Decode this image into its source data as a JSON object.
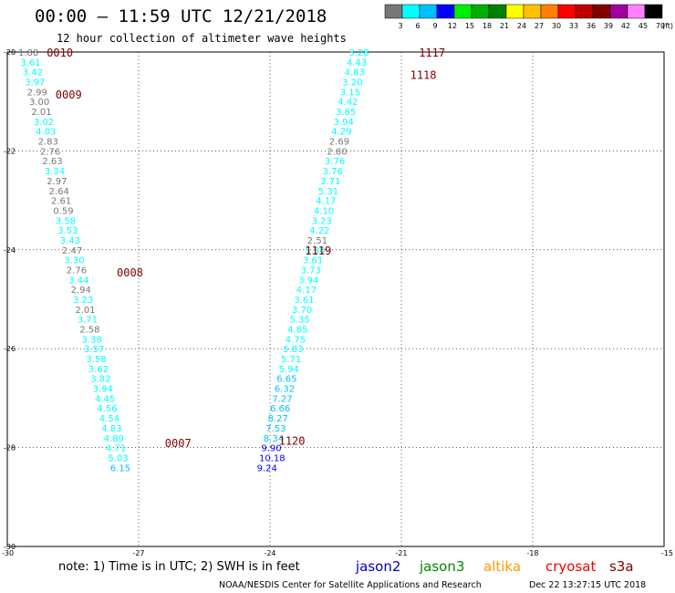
{
  "header": {
    "title": "00:00 – 11:59 UTC 12/21/2018",
    "subtitle": "12 hour collection of altimeter wave heights"
  },
  "color_scale": {
    "labels": [
      "3",
      "6",
      "9",
      "12",
      "15",
      "18",
      "21",
      "24",
      "27",
      "30",
      "33",
      "36",
      "39",
      "42",
      "45",
      "70"
    ],
    "unit": "(ft)",
    "colors": [
      "#777777",
      "#00ffff",
      "#00bfff",
      "#0000ff",
      "#00ee00",
      "#00b000",
      "#008000",
      "#ffff00",
      "#ffc000",
      "#ff8000",
      "#ff0000",
      "#c00000",
      "#800000",
      "#a000a0",
      "#ff80ff",
      "#000000"
    ]
  },
  "map": {
    "lat_labels": [
      "-20",
      "-22",
      "-24",
      "-26",
      "-28",
      "-30"
    ],
    "lon_labels": [
      "-30",
      "-27",
      "-24",
      "-21",
      "-18",
      "-15"
    ]
  },
  "passes": [
    {
      "id": "0010",
      "lon": -29.1,
      "lat": -20.0
    },
    {
      "id": "0009",
      "lon": -28.9,
      "lat": -20.85
    },
    {
      "id": "0008",
      "lon": -27.5,
      "lat": -24.45
    },
    {
      "id": "0007",
      "lon": -26.4,
      "lat": -27.9
    },
    {
      "id": "1117",
      "lon": -20.6,
      "lat": -20.0
    },
    {
      "id": "1118",
      "lon": -20.8,
      "lat": -20.45
    },
    {
      "id": "1119",
      "lon": -23.2,
      "lat": -24.0
    },
    {
      "id": "1120",
      "lon": -23.8,
      "lat": -27.85
    }
  ],
  "tracks": [
    {
      "name": "track-1",
      "points": [
        {
          "lon": -29.75,
          "lat": -20.0,
          "v": "1.88",
          "c": "#777777"
        },
        {
          "lon": -29.7,
          "lat": -20.2,
          "v": "3.61",
          "c": "#00ffff"
        },
        {
          "lon": -29.65,
          "lat": -20.4,
          "v": "3.42",
          "c": "#00ffff"
        },
        {
          "lon": -29.6,
          "lat": -20.6,
          "v": "3.97",
          "c": "#00ffff"
        },
        {
          "lon": -29.55,
          "lat": -20.8,
          "v": "2.99",
          "c": "#777777"
        },
        {
          "lon": -29.5,
          "lat": -21.0,
          "v": "3.00",
          "c": "#777777"
        },
        {
          "lon": -29.45,
          "lat": -21.2,
          "v": "2.01",
          "c": "#777777"
        },
        {
          "lon": -29.4,
          "lat": -21.4,
          "v": "3.02",
          "c": "#00ffff"
        },
        {
          "lon": -29.35,
          "lat": -21.6,
          "v": "4.03",
          "c": "#00ffff"
        },
        {
          "lon": -29.3,
          "lat": -21.8,
          "v": "2.83",
          "c": "#777777"
        },
        {
          "lon": -29.25,
          "lat": -22.0,
          "v": "2.76",
          "c": "#777777"
        },
        {
          "lon": -29.2,
          "lat": -22.2,
          "v": "2.63",
          "c": "#777777"
        },
        {
          "lon": -29.15,
          "lat": -22.4,
          "v": "3.34",
          "c": "#00ffff"
        },
        {
          "lon": -29.1,
          "lat": -22.6,
          "v": "2.97",
          "c": "#777777"
        },
        {
          "lon": -29.05,
          "lat": -22.8,
          "v": "2.64",
          "c": "#777777"
        },
        {
          "lon": -29.0,
          "lat": -23.0,
          "v": "2.61",
          "c": "#777777"
        },
        {
          "lon": -28.95,
          "lat": -23.2,
          "v": "0.59",
          "c": "#777777"
        },
        {
          "lon": -28.9,
          "lat": -23.4,
          "v": "3.58",
          "c": "#00ffff"
        },
        {
          "lon": -28.85,
          "lat": -23.6,
          "v": "3.53",
          "c": "#00ffff"
        },
        {
          "lon": -28.8,
          "lat": -23.8,
          "v": "3.43",
          "c": "#00ffff"
        },
        {
          "lon": -28.75,
          "lat": -24.0,
          "v": "2.47",
          "c": "#777777"
        },
        {
          "lon": -28.7,
          "lat": -24.2,
          "v": "3.30",
          "c": "#00ffff"
        },
        {
          "lon": -28.65,
          "lat": -24.4,
          "v": "2.76",
          "c": "#777777"
        },
        {
          "lon": -28.6,
          "lat": -24.6,
          "v": "3.44",
          "c": "#00ffff"
        },
        {
          "lon": -28.55,
          "lat": -24.8,
          "v": "2.94",
          "c": "#777777"
        },
        {
          "lon": -28.5,
          "lat": -25.0,
          "v": "3.23",
          "c": "#00ffff"
        },
        {
          "lon": -28.45,
          "lat": -25.2,
          "v": "2.01",
          "c": "#777777"
        },
        {
          "lon": -28.4,
          "lat": -25.4,
          "v": "3.71",
          "c": "#00ffff"
        },
        {
          "lon": -28.35,
          "lat": -25.6,
          "v": "2.58",
          "c": "#777777"
        },
        {
          "lon": -28.3,
          "lat": -25.8,
          "v": "3.38",
          "c": "#00ffff"
        },
        {
          "lon": -28.25,
          "lat": -26.0,
          "v": "3.57",
          "c": "#00ffff"
        },
        {
          "lon": -28.2,
          "lat": -26.2,
          "v": "3.58",
          "c": "#00ffff"
        },
        {
          "lon": -28.15,
          "lat": -26.4,
          "v": "3.62",
          "c": "#00ffff"
        },
        {
          "lon": -28.1,
          "lat": -26.6,
          "v": "3.82",
          "c": "#00ffff"
        },
        {
          "lon": -28.05,
          "lat": -26.8,
          "v": "3.94",
          "c": "#00ffff"
        },
        {
          "lon": -28.0,
          "lat": -27.0,
          "v": "4.45",
          "c": "#00ffff"
        },
        {
          "lon": -27.95,
          "lat": -27.2,
          "v": "4.56",
          "c": "#00ffff"
        },
        {
          "lon": -27.9,
          "lat": -27.4,
          "v": "4.54",
          "c": "#00ffff"
        },
        {
          "lon": -27.85,
          "lat": -27.6,
          "v": "4.83",
          "c": "#00ffff"
        },
        {
          "lon": -27.8,
          "lat": -27.8,
          "v": "4.89",
          "c": "#00ffff"
        },
        {
          "lon": -27.75,
          "lat": -28.0,
          "v": "4.71",
          "c": "#00ffff"
        },
        {
          "lon": -27.7,
          "lat": -28.2,
          "v": "5.03",
          "c": "#00ffff"
        },
        {
          "lon": -27.65,
          "lat": -28.4,
          "v": "6.15",
          "c": "#00bfff"
        }
      ]
    },
    {
      "name": "track-2",
      "points": [
        {
          "lon": -22.2,
          "lat": -20.0,
          "v": "3.28",
          "c": "#00ffff"
        },
        {
          "lon": -22.25,
          "lat": -20.2,
          "v": "4.43",
          "c": "#00ffff"
        },
        {
          "lon": -22.3,
          "lat": -20.4,
          "v": "4.83",
          "c": "#00ffff"
        },
        {
          "lon": -22.35,
          "lat": -20.6,
          "v": "3.20",
          "c": "#00ffff"
        },
        {
          "lon": -22.4,
          "lat": -20.8,
          "v": "3.15",
          "c": "#00ffff"
        },
        {
          "lon": -22.45,
          "lat": -21.0,
          "v": "4.42",
          "c": "#00ffff"
        },
        {
          "lon": -22.5,
          "lat": -21.2,
          "v": "3.85",
          "c": "#00ffff"
        },
        {
          "lon": -22.55,
          "lat": -21.4,
          "v": "3.94",
          "c": "#00ffff"
        },
        {
          "lon": -22.6,
          "lat": -21.6,
          "v": "4.29",
          "c": "#00ffff"
        },
        {
          "lon": -22.65,
          "lat": -21.8,
          "v": "2.69",
          "c": "#777777"
        },
        {
          "lon": -22.7,
          "lat": -22.0,
          "v": "2.80",
          "c": "#777777"
        },
        {
          "lon": -22.75,
          "lat": -22.2,
          "v": "3.76",
          "c": "#00ffff"
        },
        {
          "lon": -22.8,
          "lat": -22.4,
          "v": "3.76",
          "c": "#00ffff"
        },
        {
          "lon": -22.85,
          "lat": -22.6,
          "v": "3.71",
          "c": "#00ffff"
        },
        {
          "lon": -22.9,
          "lat": -22.8,
          "v": "5.31",
          "c": "#00ffff"
        },
        {
          "lon": -22.95,
          "lat": -23.0,
          "v": "4.17",
          "c": "#00ffff"
        },
        {
          "lon": -23.0,
          "lat": -23.2,
          "v": "4.10",
          "c": "#00ffff"
        },
        {
          "lon": -23.05,
          "lat": -23.4,
          "v": "3.23",
          "c": "#00ffff"
        },
        {
          "lon": -23.1,
          "lat": -23.6,
          "v": "4.22",
          "c": "#00ffff"
        },
        {
          "lon": -23.15,
          "lat": -23.8,
          "v": "2.51",
          "c": "#777777"
        },
        {
          "lon": -23.2,
          "lat": -24.0,
          "v": "5.30",
          "c": "#00ffff"
        },
        {
          "lon": -23.25,
          "lat": -24.2,
          "v": "3.61",
          "c": "#00ffff"
        },
        {
          "lon": -23.3,
          "lat": -24.4,
          "v": "3.73",
          "c": "#00ffff"
        },
        {
          "lon": -23.35,
          "lat": -24.6,
          "v": "3.94",
          "c": "#00ffff"
        },
        {
          "lon": -23.4,
          "lat": -24.8,
          "v": "4.17",
          "c": "#00ffff"
        },
        {
          "lon": -23.45,
          "lat": -25.0,
          "v": "3.61",
          "c": "#00ffff"
        },
        {
          "lon": -23.5,
          "lat": -25.2,
          "v": "3.70",
          "c": "#00ffff"
        },
        {
          "lon": -23.55,
          "lat": -25.4,
          "v": "5.35",
          "c": "#00ffff"
        },
        {
          "lon": -23.6,
          "lat": -25.6,
          "v": "4.85",
          "c": "#00ffff"
        },
        {
          "lon": -23.65,
          "lat": -25.8,
          "v": "4.75",
          "c": "#00ffff"
        },
        {
          "lon": -23.7,
          "lat": -26.0,
          "v": "5.83",
          "c": "#00ffff"
        },
        {
          "lon": -23.75,
          "lat": -26.2,
          "v": "5.71",
          "c": "#00ffff"
        },
        {
          "lon": -23.8,
          "lat": -26.4,
          "v": "5.94",
          "c": "#00ffff"
        },
        {
          "lon": -23.85,
          "lat": -26.6,
          "v": "6.65",
          "c": "#00bfff"
        },
        {
          "lon": -23.9,
          "lat": -26.8,
          "v": "6.32",
          "c": "#00bfff"
        },
        {
          "lon": -23.95,
          "lat": -27.0,
          "v": "7.27",
          "c": "#00bfff"
        },
        {
          "lon": -24.0,
          "lat": -27.2,
          "v": "6.66",
          "c": "#00bfff"
        },
        {
          "lon": -24.05,
          "lat": -27.4,
          "v": "8.27",
          "c": "#00bfff"
        },
        {
          "lon": -24.1,
          "lat": -27.6,
          "v": "7.53",
          "c": "#00bfff"
        },
        {
          "lon": -24.15,
          "lat": -27.8,
          "v": "8.34",
          "c": "#00bfff"
        },
        {
          "lon": -24.2,
          "lat": -28.0,
          "v": "9.90",
          "c": "#0000ff"
        },
        {
          "lon": -24.25,
          "lat": -28.2,
          "v": "10.18",
          "c": "#0000ff"
        },
        {
          "lon": -24.3,
          "lat": -28.4,
          "v": "9.24",
          "c": "#0000ff"
        }
      ]
    }
  ],
  "footer": {
    "note": "note: 1) Time is in UTC; 2) SWH is in feet",
    "satellites": [
      {
        "name": "jason2",
        "color": "#0000c0"
      },
      {
        "name": "jason3",
        "color": "#008800"
      },
      {
        "name": "altika",
        "color": "#ff9900"
      },
      {
        "name": "cryosat",
        "color": "#ee0000"
      },
      {
        "name": "s3a",
        "color": "#800000"
      }
    ],
    "credit": "NOAA/NESDIS Center for Satellite Applications and Research",
    "timestamp": "Dec 22 13:27:15 UTC 2018"
  }
}
